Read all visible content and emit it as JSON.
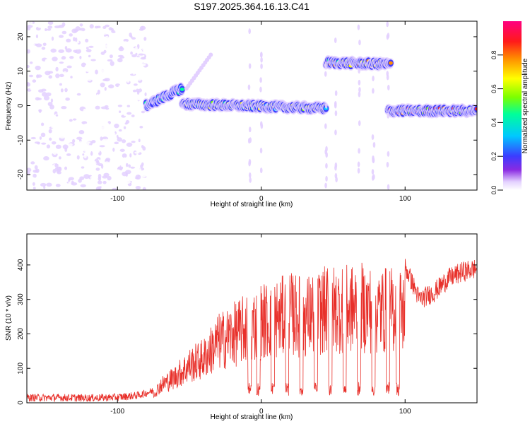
{
  "title": "S197.2025.364.16.13.C41",
  "chart_data": [
    {
      "type": "heatmap",
      "title": "S197.2025.364.16.13.C41",
      "xlabel": "Height of straight line (km)",
      "ylabel": "Frequency (Hz)",
      "xlim": [
        -163,
        150
      ],
      "ylim": [
        -24.5,
        24.5
      ],
      "xticks": [
        -100,
        0,
        100
      ],
      "yticks": [
        -20,
        -10,
        0,
        10,
        20
      ],
      "colorbar": {
        "label": "Normalized spectral amplitude",
        "range": [
          0,
          1
        ],
        "ticks": [
          "0.0",
          "0.2",
          "0.4",
          "0.6",
          "0.8"
        ],
        "colors": [
          "#ffffff",
          "#e3d0ff",
          "#8a2be2",
          "#3c3cff",
          "#00c8ff",
          "#00ff9a",
          "#7cff00",
          "#ffff00",
          "#ff8c00",
          "#ff1a1a",
          "#ff0080"
        ]
      },
      "ridge_segments": [
        {
          "x_start": -80,
          "x_end": -55,
          "freq_start": 0,
          "freq_end": 5,
          "amplitude": 0.55
        },
        {
          "x_start": -55,
          "x_end": 45,
          "freq_start": 0.5,
          "freq_end": -0.8,
          "amplitude": 0.75
        },
        {
          "x_start": 45,
          "x_end": 90,
          "freq_start": 12.5,
          "freq_end": 12,
          "amplitude": 0.85
        },
        {
          "x_start": 88,
          "x_end": 150,
          "freq_start": -1.5,
          "freq_end": -1.5,
          "amplitude": 0.9
        }
      ],
      "noise_region": {
        "x_start": -163,
        "x_end": -80,
        "freq_range": [
          -24.5,
          24.5
        ],
        "amplitude": 0.15
      }
    },
    {
      "type": "line",
      "xlabel": "Height of straight line (km)",
      "ylabel": "SNR (10 * v/v)",
      "xlim": [
        -163,
        150
      ],
      "ylim": [
        0,
        490
      ],
      "xticks": [
        -100,
        0,
        100
      ],
      "yticks": [
        0,
        100,
        200,
        300,
        400
      ],
      "color": "#e8302a",
      "series": [
        {
          "name": "SNR",
          "x": [
            -163,
            -140,
            -120,
            -100,
            -85,
            -75,
            -70,
            -60,
            -50,
            -40,
            -30,
            -20,
            -10,
            0,
            10,
            20,
            30,
            40,
            50,
            60,
            70,
            80,
            90,
            100,
            110,
            120,
            130,
            140,
            150
          ],
          "y": [
            15,
            15,
            14,
            16,
            22,
            35,
            75,
            110,
            160,
            190,
            260,
            290,
            320,
            350,
            360,
            380,
            370,
            390,
            405,
            400,
            410,
            395,
            400,
            395,
            300,
            320,
            360,
            380,
            390
          ]
        }
      ]
    }
  ]
}
